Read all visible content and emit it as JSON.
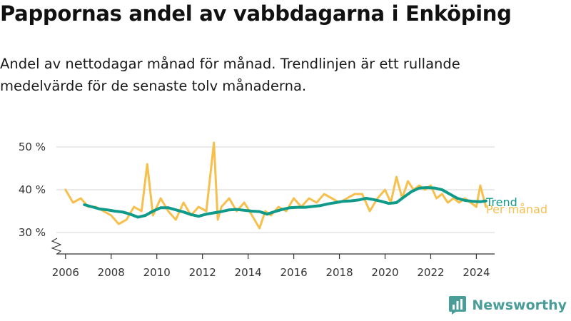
{
  "title": "Pappornas andel av vabbdagarna i Enköping",
  "subtitle": "Andel av nettodagar månad för månad. Trendlinjen är ett rullande medelvärde för de senaste tolv månaderna.",
  "brand": {
    "name": "Newsworthy",
    "logo_icon": "bar-chart-icon"
  },
  "colors": {
    "monthly": "#f6c04e",
    "trend": "#0f9a8a",
    "grid": "#dddddd",
    "axis": "#333333",
    "brand": "#4a9d99"
  },
  "chart_data": {
    "type": "line",
    "title": "Pappornas andel av vabbdagarna i Enköping",
    "xlabel": "",
    "ylabel": "",
    "xlim": [
      2005.6,
      2024.8
    ],
    "ylim": [
      25,
      53
    ],
    "y_ticks": [
      30,
      40,
      50
    ],
    "y_tick_labels": [
      "30 %",
      "40 %",
      "50 %"
    ],
    "x_ticks": [
      2006,
      2008,
      2010,
      2012,
      2014,
      2016,
      2018,
      2020,
      2022,
      2024
    ],
    "x_tick_labels": [
      "2006",
      "2008",
      "2010",
      "2012",
      "2014",
      "2016",
      "2018",
      "2020",
      "2022",
      "2024"
    ],
    "grid": true,
    "axis_break": true,
    "series": [
      {
        "name": "Per månad",
        "x": [
          2006.0,
          2006.33,
          2006.67,
          2007.0,
          2007.33,
          2007.67,
          2008.0,
          2008.33,
          2008.67,
          2009.0,
          2009.33,
          2009.58,
          2009.83,
          2010.17,
          2010.5,
          2010.83,
          2011.17,
          2011.5,
          2011.83,
          2012.17,
          2012.5,
          2012.67,
          2012.83,
          2013.17,
          2013.5,
          2013.83,
          2014.17,
          2014.5,
          2014.75,
          2015.0,
          2015.33,
          2015.67,
          2016.0,
          2016.33,
          2016.67,
          2017.0,
          2017.33,
          2017.67,
          2018.0,
          2018.33,
          2018.67,
          2019.0,
          2019.33,
          2019.67,
          2020.0,
          2020.25,
          2020.5,
          2020.75,
          2021.0,
          2021.25,
          2021.5,
          2021.75,
          2022.0,
          2022.25,
          2022.5,
          2022.75,
          2023.0,
          2023.25,
          2023.5,
          2023.75,
          2024.0,
          2024.17,
          2024.42
        ],
        "values": [
          40,
          37,
          38,
          36,
          36,
          35,
          34,
          32,
          33,
          36,
          35,
          46,
          34,
          38,
          35,
          33,
          37,
          34,
          36,
          35,
          51,
          33,
          36,
          38,
          35,
          37,
          34,
          31,
          35,
          34,
          36,
          35,
          38,
          36,
          38,
          37,
          39,
          38,
          37,
          38,
          39,
          39,
          35,
          38,
          40,
          37,
          43,
          38,
          42,
          40,
          41,
          40,
          41,
          38,
          39,
          37,
          38,
          37,
          38,
          37,
          36,
          41,
          36
        ]
      },
      {
        "name": "Trend",
        "x": [
          2006.83,
          2007.17,
          2007.5,
          2007.83,
          2008.17,
          2008.5,
          2008.83,
          2009.17,
          2009.5,
          2009.83,
          2010.17,
          2010.5,
          2010.83,
          2011.17,
          2011.5,
          2011.83,
          2012.17,
          2012.5,
          2012.83,
          2013.17,
          2013.5,
          2013.83,
          2014.17,
          2014.5,
          2014.83,
          2015.17,
          2015.5,
          2015.83,
          2016.17,
          2016.5,
          2016.83,
          2017.17,
          2017.5,
          2017.83,
          2018.17,
          2018.5,
          2018.83,
          2019.17,
          2019.5,
          2019.83,
          2020.17,
          2020.5,
          2020.83,
          2021.17,
          2021.5,
          2021.83,
          2022.17,
          2022.5,
          2022.83,
          2023.17,
          2023.5,
          2023.83,
          2024.17,
          2024.42
        ],
        "values": [
          36.5,
          36.0,
          35.5,
          35.3,
          35.0,
          34.8,
          34.3,
          33.6,
          34.0,
          35.0,
          35.8,
          35.8,
          35.3,
          34.8,
          34.2,
          33.8,
          34.3,
          34.6,
          34.9,
          35.3,
          35.4,
          35.2,
          35.0,
          34.9,
          34.3,
          34.9,
          35.4,
          35.8,
          35.9,
          35.9,
          36.1,
          36.3,
          36.7,
          37.0,
          37.3,
          37.4,
          37.6,
          38.0,
          37.7,
          37.3,
          36.8,
          37.0,
          38.3,
          39.6,
          40.4,
          40.5,
          40.4,
          40.0,
          39.0,
          38.0,
          37.5,
          37.3,
          37.2,
          37.4
        ]
      }
    ],
    "legend": {
      "placement": "right-end",
      "entries": [
        "Trend",
        "Per månad"
      ]
    }
  }
}
